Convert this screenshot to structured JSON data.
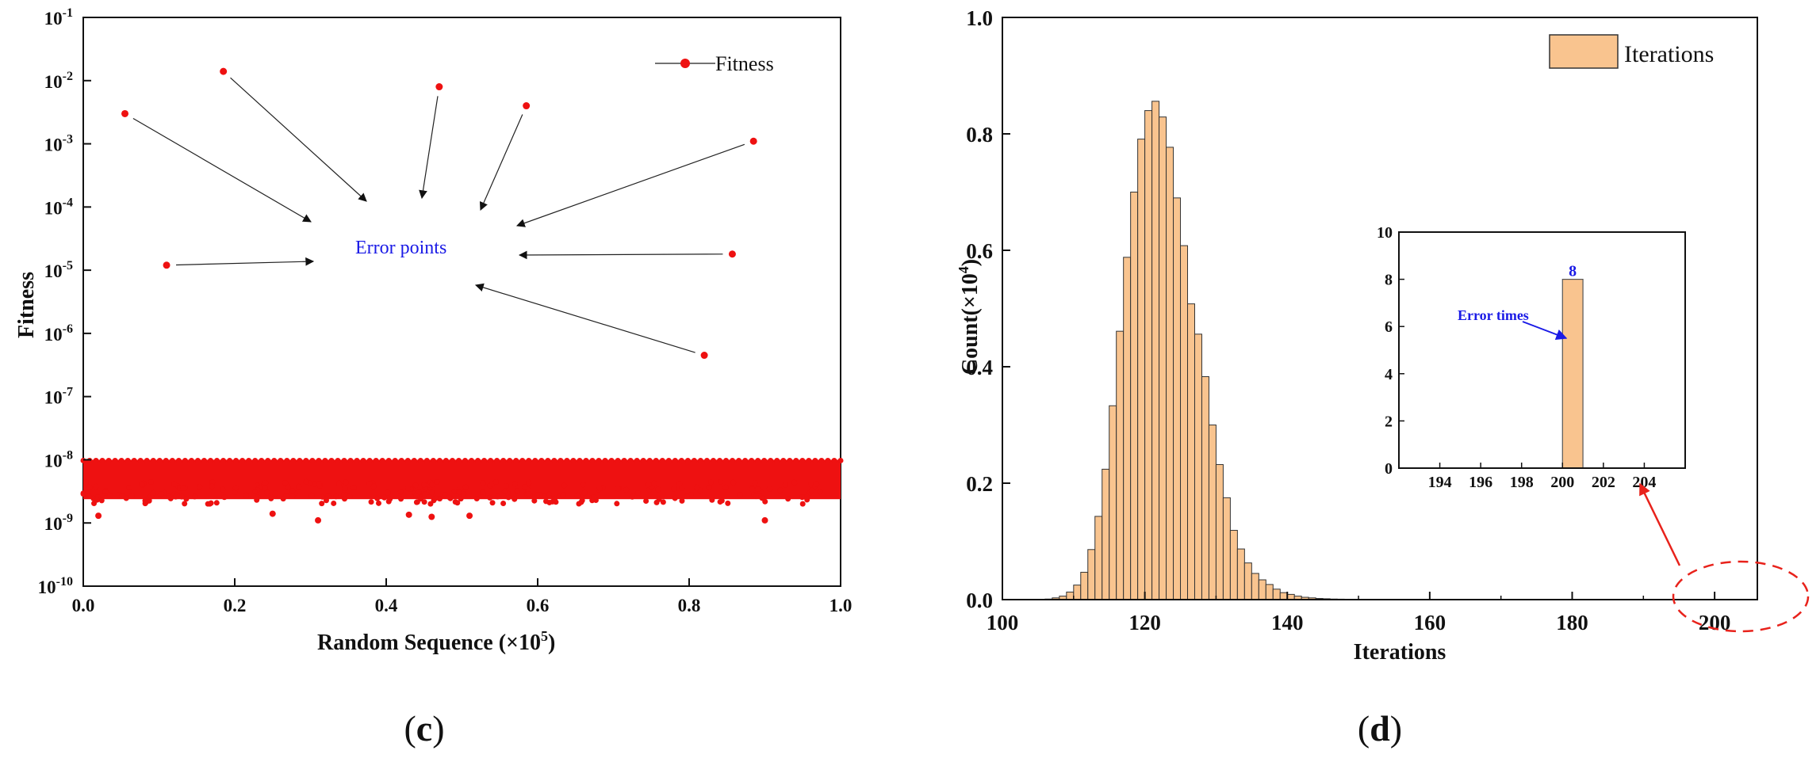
{
  "chart_data": [
    {
      "panel": "c",
      "type": "scatter",
      "yscale": "log",
      "xlabel": "Random Sequence (×10",
      "xlabel_sup": "5",
      "xlabel_close": ")",
      "ylabel": "Fitness",
      "xlim": [
        0.0,
        1.0
      ],
      "ylim_exp": [
        -10,
        -1
      ],
      "x_ticks": [
        "0.0",
        "0.2",
        "0.4",
        "0.6",
        "0.8",
        "1.0"
      ],
      "y_tick_exponents": [
        "-10",
        "-9",
        "-8",
        "-7",
        "-6",
        "-5",
        "-4",
        "-3",
        "-2",
        "-1"
      ],
      "y_tick_base": "10",
      "legend": {
        "label": "Fitness",
        "position": "top-right"
      },
      "annotation": "Error points",
      "error_points": [
        {
          "x": 0.055,
          "y": 0.003
        },
        {
          "x": 0.11,
          "y": 1.2e-05
        },
        {
          "x": 0.185,
          "y": 0.014
        },
        {
          "x": 0.47,
          "y": 0.008
        },
        {
          "x": 0.585,
          "y": 0.004
        },
        {
          "x": 0.82,
          "y": 4.5e-07
        },
        {
          "x": 0.857,
          "y": 1.8e-05
        },
        {
          "x": 0.885,
          "y": 0.0011
        }
      ],
      "normal_band": {
        "y_min": 2e-09,
        "y_max": 1e-08,
        "n_samples": 100000
      },
      "low_outliers": [
        {
          "x": 0.02,
          "y": 1.3e-09
        },
        {
          "x": 0.25,
          "y": 1.4e-09
        },
        {
          "x": 0.31,
          "y": 1.1e-09
        },
        {
          "x": 0.43,
          "y": 1.35e-09
        },
        {
          "x": 0.46,
          "y": 1.25e-09
        },
        {
          "x": 0.51,
          "y": 1.3e-09
        },
        {
          "x": 0.9,
          "y": 1.1e-09
        }
      ]
    },
    {
      "panel": "d",
      "type": "bar",
      "xlabel": "Iterations",
      "ylabel": "Count(×10",
      "ylabel_sup": "4",
      "ylabel_close": ")",
      "xlim": [
        100,
        206
      ],
      "ylim": [
        0,
        1.0
      ],
      "x_ticks": [
        "100",
        "120",
        "140",
        "160",
        "180",
        "200"
      ],
      "y_ticks": [
        "0.0",
        "0.2",
        "0.4",
        "0.6",
        "0.8",
        "1.0"
      ],
      "legend": {
        "label": "Iterations",
        "position": "top-right"
      },
      "bar_color": "#f9c48f",
      "bin_width": 1,
      "bins_start": [
        106,
        107,
        108,
        109,
        110,
        111,
        112,
        113,
        114,
        115,
        116,
        117,
        118,
        119,
        120,
        121,
        122,
        123,
        124,
        125,
        126,
        127,
        128,
        129,
        130,
        131,
        132,
        133,
        134,
        135,
        136,
        137,
        138,
        139,
        140,
        141,
        142,
        143,
        144,
        145,
        146,
        147,
        148,
        149,
        150
      ],
      "counts": [
        0.001,
        0.003,
        0.006,
        0.013,
        0.025,
        0.047,
        0.086,
        0.143,
        0.224,
        0.333,
        0.461,
        0.588,
        0.7,
        0.791,
        0.84,
        0.856,
        0.829,
        0.777,
        0.69,
        0.608,
        0.508,
        0.456,
        0.383,
        0.3,
        0.232,
        0.175,
        0.119,
        0.087,
        0.063,
        0.045,
        0.034,
        0.026,
        0.018,
        0.012,
        0.009,
        0.006,
        0.004,
        0.003,
        0.002,
        0.0015,
        0.001,
        0.0008,
        0.0005,
        0.0003,
        0.0002
      ],
      "inset": {
        "type": "bar",
        "xlim": [
          192,
          206
        ],
        "ylim": [
          0,
          10
        ],
        "x_ticks": [
          "194",
          "196",
          "198",
          "200",
          "202",
          "204"
        ],
        "y_ticks": [
          "0",
          "2",
          "4",
          "6",
          "8",
          "10"
        ],
        "bars": [
          {
            "x": 200,
            "width": 1,
            "value": 8
          }
        ],
        "bar_label": "8",
        "annotation": "Error times"
      },
      "highlight_region": "near 200"
    }
  ],
  "panel_labels": {
    "c": "c",
    "d": "d"
  }
}
